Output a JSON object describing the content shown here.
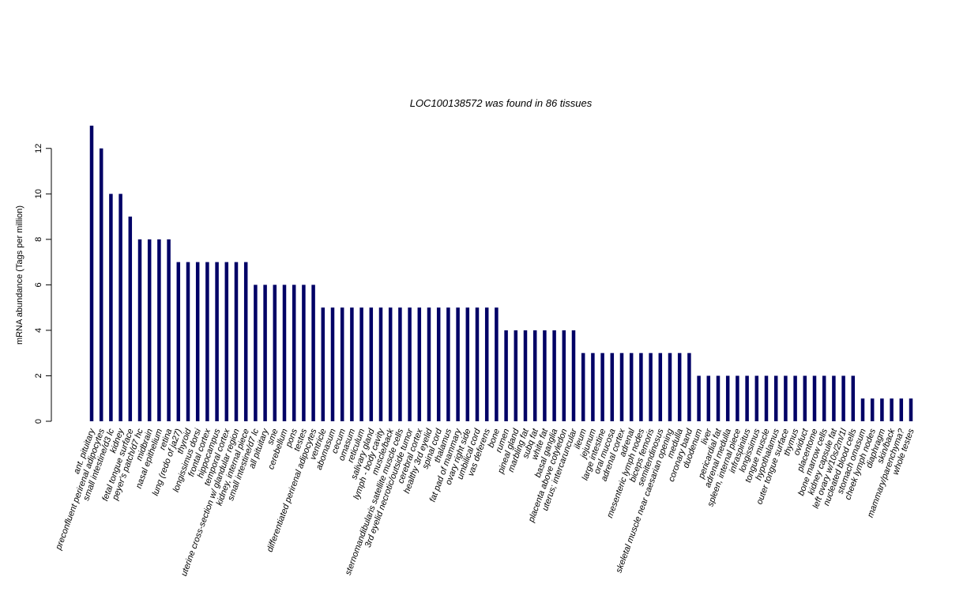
{
  "chart_data": {
    "type": "bar",
    "title": "LOC100138572  was found in  86  tissues",
    "xlabel": "",
    "ylabel": "mRNA abundance (Tags per million)",
    "ylim": [
      0,
      13
    ],
    "yticks": [
      0,
      2,
      4,
      6,
      8,
      10,
      12
    ],
    "grid": false,
    "bar_color": "#000066",
    "categories": [
      "ant. pituitary",
      "preconfluent perirenal adipocytes",
      "small intestine/d3 lc",
      "kidney",
      "fetal tongue surface",
      "peyer's patch/d7 hc",
      "midbrain",
      "nasal epithelium",
      "retina",
      "lung (redo of ja27)",
      "thyroid",
      "longissimus dorsi",
      "frontal cortex",
      "hippocampus",
      "temporal cortex",
      "uterine cross-section w/ glandular region",
      "kidney, internal piece",
      "small intestine/d7 lc",
      "all pituitary",
      "sme",
      "cerebellum",
      "pons",
      "testes",
      "differentiated perirenal adipocytes",
      "ventricle",
      "abomasum",
      "cecum",
      "omasum",
      "reticulum",
      "salivary gland",
      "lymph - body cavity",
      "muscle/back",
      "sternomandibularis satellite muscle cells",
      "3rd eyelid necrotic/outside tumor",
      "cerebral cortex",
      "healthy 3rd eyelid",
      "spinal cord",
      "thalamus",
      "fat pad of mammary",
      "ovary right side",
      "umbilical cord",
      "vas deferens",
      "bone",
      "rumen",
      "pineal gland",
      "marbling fat",
      "subq fat",
      "white fat",
      "basal ganglia",
      "placenta above cotyledon",
      "uterus; intercaruncular",
      "ileum",
      "jejunum",
      "large intestine",
      "oral mucosa",
      "adrenal cortex",
      "adrenal",
      "mesenteric lymph nodes",
      "biceps femoris",
      "semitendinosus",
      "skeletal muscle near caesarian opening",
      "medulla",
      "coronary band",
      "duodenum",
      "liver",
      "pericardial fat",
      "adrenal medulla",
      "spleen, internal piece",
      "infraspinitus",
      "longissimus",
      "tongue muscle",
      "hypothalamus",
      "outer tongue surface",
      "thymus",
      "oviduct",
      "placentome",
      "bone marrow cells",
      "kidney capsule fat",
      "left ovary w/10s/2m/1l",
      "nucleated blood cells",
      "stomach omasum",
      "cheek lymph nodes",
      "diaphragm",
      "skin/back",
      "mammary/parenchyma?",
      "whole testes"
    ],
    "values": [
      13,
      12,
      10,
      10,
      9,
      8,
      8,
      8,
      8,
      7,
      7,
      7,
      7,
      7,
      7,
      7,
      7,
      6,
      6,
      6,
      6,
      6,
      6,
      6,
      5,
      5,
      5,
      5,
      5,
      5,
      5,
      5,
      5,
      5,
      5,
      5,
      5,
      5,
      5,
      5,
      5,
      5,
      5,
      4,
      4,
      4,
      4,
      4,
      4,
      4,
      4,
      3,
      3,
      3,
      3,
      3,
      3,
      3,
      3,
      3,
      3,
      3,
      3,
      2,
      2,
      2,
      2,
      2,
      2,
      2,
      2,
      2,
      2,
      2,
      2,
      2,
      2,
      2,
      2,
      2,
      1,
      1,
      1,
      1,
      1,
      1
    ]
  }
}
